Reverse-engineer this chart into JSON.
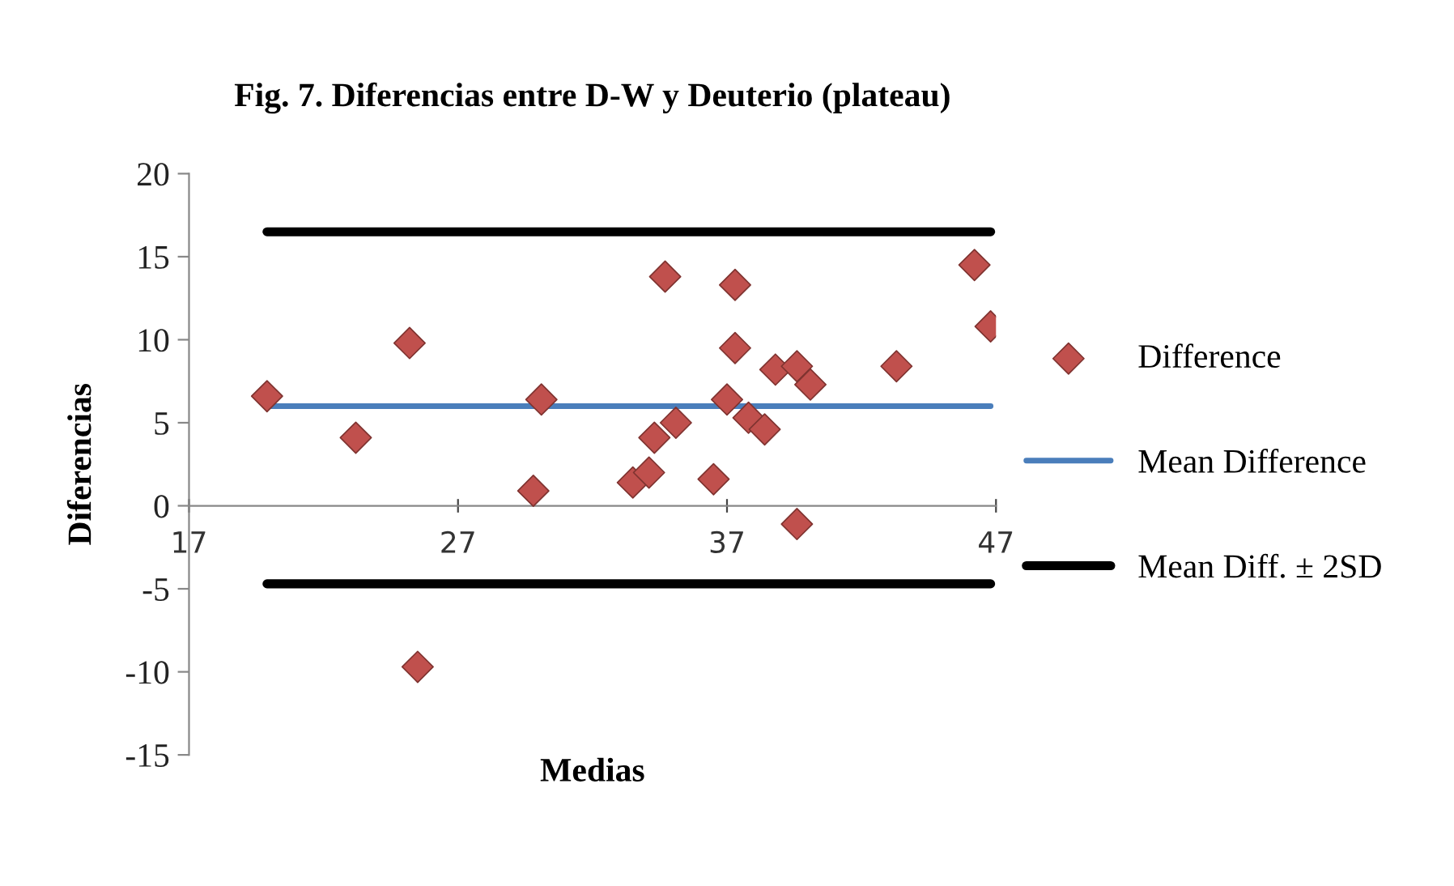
{
  "chart_data": {
    "type": "scatter",
    "title": "Fig. 7. Diferencias entre D-W y Deuterio (plateau)",
    "xlabel": "Medias",
    "ylabel": "Diferencias",
    "xlim": [
      17,
      47
    ],
    "xticks": [
      17,
      27,
      37,
      47
    ],
    "ylim": [
      -15,
      20
    ],
    "yticks": [
      -15,
      -10,
      -5,
      0,
      5,
      10,
      15,
      20
    ],
    "grid": false,
    "legend": "right",
    "marker": "diamond",
    "series": [
      {
        "name": "Difference",
        "color": "#c0504d",
        "x": [
          19.9,
          23.2,
          25.2,
          25.5,
          30.1,
          29.8,
          33.5,
          34.1,
          34.3,
          35.1,
          34.7,
          37.3,
          37.3,
          37.0,
          36.5,
          37.8,
          38.4,
          38.8,
          39.6,
          40.1,
          39.6,
          43.3,
          46.2,
          46.8
        ],
        "values": [
          6.6,
          4.1,
          9.8,
          -9.7,
          6.4,
          0.9,
          1.4,
          2.0,
          4.1,
          5.0,
          13.8,
          13.3,
          9.5,
          6.4,
          1.6,
          5.3,
          4.6,
          8.2,
          8.4,
          7.3,
          -1.1,
          8.4,
          14.5,
          10.8
        ]
      },
      {
        "name": "Mean Difference",
        "type": "line",
        "color": "#4a7ebb",
        "marker": "none",
        "x": [
          19.9,
          46.8
        ],
        "values": [
          6.0,
          6.0
        ]
      },
      {
        "name": "Mean Diff. ± 2SD",
        "type": "line",
        "color": "#000000",
        "marker": "none",
        "x": [
          19.9,
          46.8
        ],
        "values": [
          16.5,
          16.5
        ]
      },
      {
        "type": "line",
        "color": "#000000",
        "marker": "none",
        "x": [
          19.9,
          46.8
        ],
        "values": [
          -4.7,
          -4.7
        ]
      }
    ]
  }
}
